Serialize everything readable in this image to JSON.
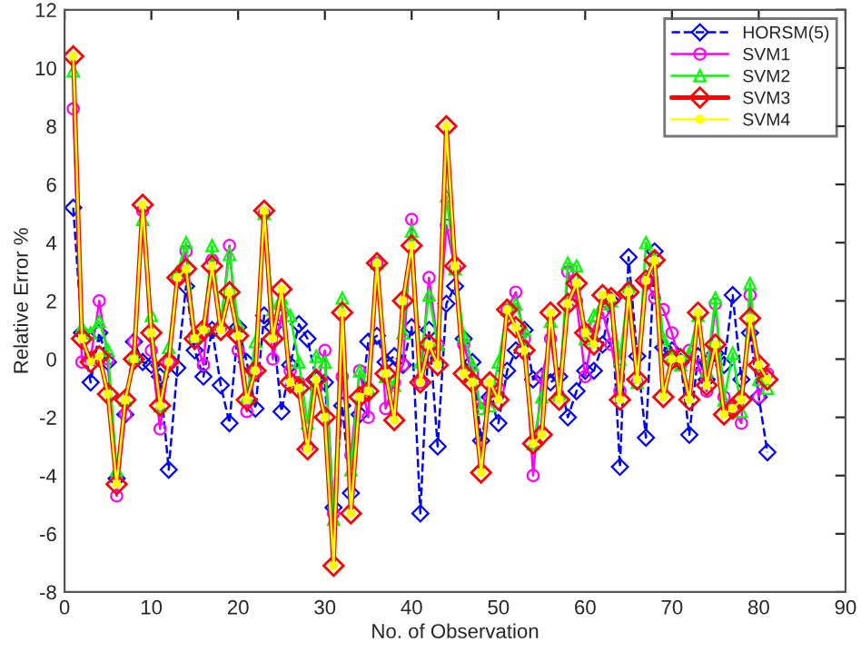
{
  "chart_data": {
    "type": "line",
    "xlabel": "No. of Observation",
    "ylabel": "Relative Error %",
    "x": [
      1,
      2,
      3,
      4,
      5,
      6,
      7,
      8,
      9,
      10,
      11,
      12,
      13,
      14,
      15,
      16,
      17,
      18,
      19,
      20,
      21,
      22,
      23,
      24,
      25,
      26,
      27,
      28,
      29,
      30,
      31,
      32,
      33,
      34,
      35,
      36,
      37,
      38,
      39,
      40,
      41,
      42,
      43,
      44,
      45,
      46,
      47,
      48,
      49,
      50,
      51,
      52,
      53,
      54,
      55,
      56,
      57,
      58,
      59,
      60,
      61,
      62,
      63,
      64,
      65,
      66,
      67,
      68,
      69,
      70,
      71,
      72,
      73,
      74,
      75,
      76,
      77,
      78,
      79,
      80,
      81
    ],
    "series": [
      {
        "name": "HORSM(5)",
        "color": "#0000ff",
        "marker": "diamond",
        "line_style": "dashed",
        "values": [
          5.2,
          0.9,
          -0.8,
          0.9,
          -0.1,
          -4.1,
          -1.9,
          0.6,
          -0.1,
          -0.2,
          -0.6,
          -3.8,
          -0.3,
          2.5,
          0.3,
          -0.6,
          1.0,
          -0.9,
          -2.2,
          1.1,
          -0.1,
          -1.7,
          1.5,
          1.1,
          -1.8,
          -0.2,
          1.2,
          0.7,
          -0.7,
          -0.8,
          -5.1,
          -1.6,
          -4.6,
          -1.9,
          0.6,
          0.8,
          -0.1,
          0.1,
          -0.2,
          1.1,
          -5.3,
          1.0,
          -3.0,
          1.9,
          2.5,
          0.7,
          -0.1,
          -2.8,
          -1.3,
          -2.2,
          -0.4,
          0.3,
          1.0,
          -0.7,
          -0.6,
          -0.8,
          -0.6,
          -2.0,
          -1.1,
          -0.4,
          -0.4,
          0.5,
          2.0,
          -3.7,
          3.5,
          0.1,
          -2.7,
          3.7,
          0.4,
          0.3,
          -0.1,
          -2.6,
          0.1,
          -0.7,
          0.2,
          -0.2,
          2.2,
          -0.7,
          0.9,
          -1.3,
          -3.2
        ]
      },
      {
        "name": "SVM1",
        "color": "#ff00ff",
        "marker": "circle",
        "line_style": "solid",
        "values": [
          8.6,
          -0.1,
          0,
          2.0,
          0,
          -4.7,
          -1.9,
          0.6,
          5.1,
          0.3,
          -2.4,
          -0.1,
          2.8,
          3.7,
          0.8,
          -0.2,
          3.4,
          1.1,
          3.9,
          0.3,
          -1.8,
          -0.4,
          5.0,
          0,
          1.5,
          -0.4,
          -0.8,
          -3.0,
          -1.0,
          0.3,
          -5.3,
          -0.6,
          -3.3,
          -0.4,
          -2.0,
          3.3,
          -1.7,
          -0.8,
          -0.2,
          4.8,
          -0.8,
          2.8,
          0.5,
          4.6,
          3.1,
          0.5,
          -0.5,
          -1.7,
          -1.4,
          -1.0,
          1.7,
          2.3,
          0.7,
          -4.0,
          -0.6,
          0.7,
          -1.3,
          3.0,
          2.0,
          -0.6,
          1.1,
          1.6,
          0.5,
          -1.1,
          2.4,
          -0.8,
          2.7,
          2.1,
          1.7,
          0.9,
          -0.2,
          0.3,
          -0.2,
          -1.1,
          1.9,
          -1.3,
          -1.7,
          -2.2,
          2.2,
          -1.3,
          -0.5
        ]
      },
      {
        "name": "SVM2",
        "color": "#00ff00",
        "marker": "triangle",
        "line_style": "solid",
        "values": [
          9.9,
          1.1,
          0.9,
          1.3,
          0.3,
          -3.8,
          -1.4,
          0.1,
          4.8,
          1.5,
          -1.6,
          0.4,
          3.0,
          4.0,
          0.8,
          1.1,
          3.9,
          1.3,
          3.6,
          1.2,
          -1.3,
          0.6,
          5.0,
          1.7,
          2.1,
          1.5,
          -0.1,
          -2.2,
          0.1,
          -0.1,
          -5.5,
          2.1,
          -3.8,
          -0.4,
          -1.0,
          3.3,
          -0.6,
          -0.9,
          0.9,
          4.4,
          -0.1,
          2.2,
          0.5,
          5.6,
          3.1,
          0.8,
          -0.2,
          -1.7,
          -1.6,
          -0.1,
          1.7,
          1.9,
          1.0,
          -2.9,
          -1.3,
          1.3,
          -1.2,
          3.3,
          3.2,
          0.7,
          1.5,
          1.9,
          2.0,
          0,
          2.5,
          -0.8,
          4.0,
          3.4,
          0.7,
          0.1,
          -0.2,
          0.2,
          1.5,
          -0.4,
          2.1,
          -1.4,
          0.2,
          -1.8,
          2.6,
          -0.7,
          -1.0
        ]
      },
      {
        "name": "SVM3",
        "color": "#ff0000",
        "marker": "diamond",
        "line_style": "solid",
        "values": [
          10.4,
          0.7,
          -0.1,
          0.1,
          -1.2,
          -4.3,
          -1.4,
          0,
          5.3,
          0.9,
          -1.6,
          -0.1,
          2.8,
          3.1,
          0.7,
          1.0,
          3.2,
          1.0,
          2.3,
          0.8,
          -1.4,
          -0.4,
          5.1,
          0.7,
          2.4,
          -0.8,
          -1.0,
          -3.1,
          -0.7,
          -2.0,
          -7.1,
          1.6,
          -5.3,
          -1.3,
          -1.1,
          3.3,
          -0.5,
          -2.1,
          2.0,
          3.9,
          -0.8,
          0.5,
          -0.2,
          8.0,
          3.2,
          -0.5,
          -0.8,
          -3.9,
          -0.8,
          -1.4,
          1.7,
          1.1,
          0.3,
          -2.9,
          -2.6,
          1.6,
          -1.4,
          1.9,
          2.6,
          0.9,
          0.5,
          2.2,
          2.1,
          -1.4,
          2.3,
          -0.7,
          2.7,
          3.4,
          -1.3,
          0,
          0,
          -1.4,
          1.6,
          -0.9,
          0.5,
          -1.9,
          -1.7,
          -1.4,
          1.4,
          -0.2,
          -0.7
        ]
      },
      {
        "name": "SVM4",
        "color": "#ffff00",
        "marker": "circle",
        "line_style": "solid",
        "values": [
          10.4,
          0.7,
          -0.1,
          0.1,
          -1.2,
          -4.3,
          -1.4,
          0,
          5.3,
          0.9,
          -1.6,
          -0.1,
          2.8,
          3.1,
          0.7,
          1.0,
          3.2,
          1.0,
          2.3,
          0.8,
          -1.4,
          -0.4,
          5.1,
          0.7,
          2.4,
          -0.8,
          -1.0,
          -3.1,
          -0.7,
          -2.0,
          -7.1,
          1.6,
          -5.3,
          -1.3,
          -1.1,
          3.3,
          -0.5,
          -2.1,
          2.0,
          3.9,
          -0.8,
          0.5,
          -0.2,
          8.0,
          3.2,
          -0.5,
          -0.8,
          -3.9,
          -0.8,
          -1.4,
          1.7,
          1.1,
          0.3,
          -2.9,
          -2.6,
          1.6,
          -1.4,
          1.9,
          2.6,
          0.9,
          0.5,
          2.2,
          2.1,
          -1.4,
          2.3,
          -0.7,
          2.7,
          3.4,
          -1.3,
          0,
          0,
          -1.4,
          1.6,
          -0.9,
          0.5,
          -1.9,
          -1.7,
          -1.4,
          1.4,
          -0.2,
          -0.7
        ]
      }
    ],
    "xlim": [
      0,
      90
    ],
    "xticks": [
      0,
      10,
      20,
      30,
      40,
      50,
      60,
      70,
      80,
      90
    ],
    "ylim": [
      -8,
      12
    ],
    "yticks": [
      -8,
      -6,
      -4,
      -2,
      0,
      2,
      4,
      6,
      8,
      10,
      12
    ],
    "legend": "top right"
  }
}
